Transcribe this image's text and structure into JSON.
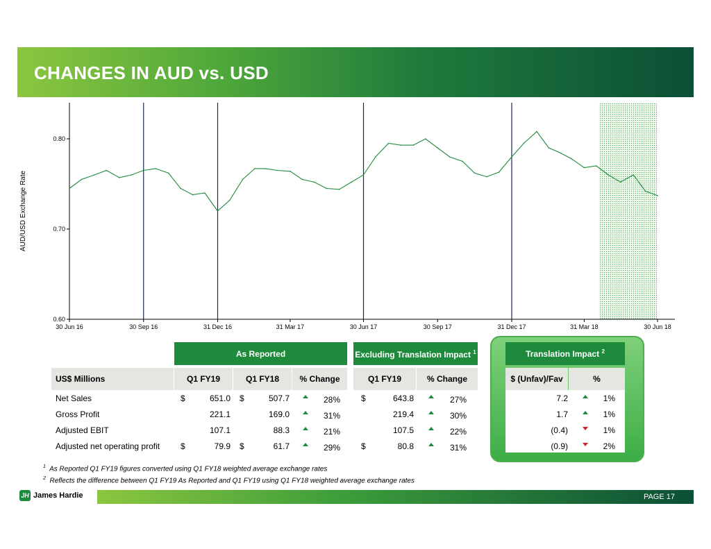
{
  "header": {
    "title": "CHANGES IN AUD vs. USD"
  },
  "chart_data": {
    "type": "line",
    "ylabel": "AUD/USD Exchange Rate",
    "ylim": [
      0.6,
      0.84
    ],
    "yticks": [
      "0.80",
      "0.70",
      "0.60"
    ],
    "ytick_values": [
      0.8,
      0.7,
      0.6
    ],
    "xticks": [
      "30 Jun 16",
      "30 Sep 16",
      "31 Dec 16",
      "31 Mar 17",
      "30 Jun 17",
      "30 Sep 17",
      "31 Dec 17",
      "31 Mar 18",
      "30 Jun 18"
    ],
    "quarter_lines": [
      "30 Sep 16",
      "31 Dec 16",
      "30 Jun 17",
      "31 Dec 17"
    ],
    "shaded_period": [
      "31 Mar 18",
      "30 Jun 18"
    ],
    "line_color": "#1e8a3c",
    "series": [
      {
        "x": [
          "30 Jun 16",
          "15 Jul 16",
          "31 Jul 16",
          "15 Aug 16",
          "31 Aug 16",
          "15 Sep 16",
          "30 Sep 16",
          "15 Oct 16",
          "31 Oct 16",
          "15 Nov 16",
          "30 Nov 16",
          "15 Dec 16",
          "31 Dec 16",
          "15 Jan 17",
          "31 Jan 17",
          "15 Feb 17",
          "28 Feb 17",
          "15 Mar 17",
          "31 Mar 17",
          "15 Apr 17",
          "30 Apr 17",
          "15 May 17",
          "31 May 17",
          "15 Jun 17",
          "30 Jun 17",
          "15 Jul 17",
          "31 Jul 17",
          "15 Aug 17",
          "31 Aug 17",
          "15 Sep 17",
          "30 Sep 17",
          "15 Oct 17",
          "31 Oct 17",
          "15 Nov 17",
          "30 Nov 17",
          "15 Dec 17",
          "31 Dec 17",
          "15 Jan 18",
          "31 Jan 18",
          "15 Feb 18",
          "28 Feb 18",
          "15 Mar 18",
          "31 Mar 18",
          "15 Apr 18",
          "30 Apr 18",
          "15 May 18",
          "31 May 18",
          "15 Jun 18",
          "30 Jun 18"
        ],
        "values": [
          0.745,
          0.755,
          0.76,
          0.765,
          0.757,
          0.76,
          0.765,
          0.767,
          0.762,
          0.745,
          0.738,
          0.74,
          0.72,
          0.732,
          0.755,
          0.767,
          0.767,
          0.765,
          0.764,
          0.755,
          0.752,
          0.745,
          0.744,
          0.752,
          0.76,
          0.78,
          0.795,
          0.793,
          0.793,
          0.8,
          0.79,
          0.78,
          0.775,
          0.762,
          0.758,
          0.763,
          0.78,
          0.795,
          0.808,
          0.79,
          0.785,
          0.778,
          0.768,
          0.77,
          0.76,
          0.752,
          0.76,
          0.742,
          0.737
        ]
      }
    ]
  },
  "table": {
    "group_as_reported": "As Reported",
    "group_excluding": "Excluding Translation Impact",
    "group_excluding_sup": "1",
    "group_impact": "Translation Impact",
    "group_impact_sup": "2",
    "col_label": "US$ Millions",
    "col_q1fy19": "Q1 FY19",
    "col_q1fy18": "Q1 FY18",
    "col_pct": "% Change",
    "col_ex_q1fy19": "Q1 FY19",
    "col_ex_pct": "% Change",
    "col_unfav": "$ (Unfav)/Fav",
    "col_imp_pct": "%",
    "currency": "$",
    "rows": [
      {
        "label": "Net Sales",
        "q1fy19_cur": "$",
        "q1fy19": "651.0",
        "q1fy18_cur": "$",
        "q1fy18": "507.7",
        "pct": "28%",
        "ex_cur": "$",
        "ex": "643.8",
        "ex_pct": "27%",
        "unfav": "7.2",
        "imp_pct": "1%",
        "imp_dir": "up"
      },
      {
        "label": "Gross Profit",
        "q1fy19_cur": "",
        "q1fy19": "221.1",
        "q1fy18_cur": "",
        "q1fy18": "169.0",
        "pct": "31%",
        "ex_cur": "",
        "ex": "219.4",
        "ex_pct": "30%",
        "unfav": "1.7",
        "imp_pct": "1%",
        "imp_dir": "up"
      },
      {
        "label": "Adjusted EBIT",
        "q1fy19_cur": "",
        "q1fy19": "107.1",
        "q1fy18_cur": "",
        "q1fy18": "88.3",
        "pct": "21%",
        "ex_cur": "",
        "ex": "107.5",
        "ex_pct": "22%",
        "unfav": "(0.4)",
        "imp_pct": "1%",
        "imp_dir": "down"
      },
      {
        "label": "Adjusted net operating profit",
        "q1fy19_cur": "$",
        "q1fy19": "79.9",
        "q1fy18_cur": "$",
        "q1fy18": "61.7",
        "pct": "29%",
        "ex_cur": "$",
        "ex": "80.8",
        "ex_pct": "31%",
        "unfav": "(0.9)",
        "imp_pct": "2%",
        "imp_dir": "down"
      }
    ]
  },
  "footnotes": {
    "n1_num": "1",
    "n1": "As Reported Q1 FY19 figures converted using Q1 FY18 weighted average exchange rates",
    "n2_num": "2",
    "n2": "Reflects the difference between Q1 FY19 As Reported and Q1 FY19 using Q1 FY18 weighted average exchange rates"
  },
  "footer": {
    "logo_mark": "JH",
    "logo_text": "James Hardie",
    "page_label": "PAGE  17"
  },
  "colors": {
    "brand_green": "#1e8a3c",
    "up": "#1e8a3c",
    "down": "#d0202b"
  }
}
